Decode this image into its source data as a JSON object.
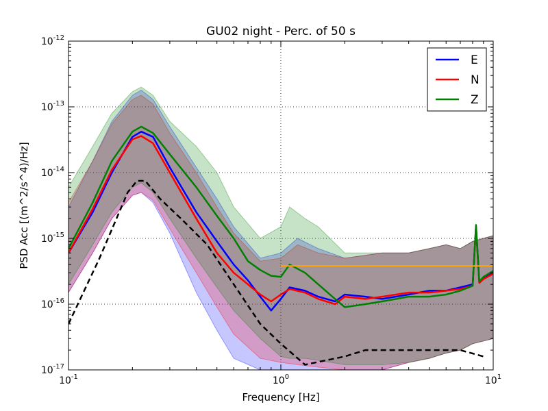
{
  "chart_data": {
    "type": "line",
    "title": "GU02 night - Perc. of 50 s",
    "xlabel": "Frequency [Hz]",
    "ylabel": "PSD Acc [(m^2/s^4)/Hz]",
    "x_scale": "log",
    "y_scale": "log",
    "xlim": [
      0.1,
      10
    ],
    "ylim": [
      1e-17,
      1e-12
    ],
    "x_ticks": [
      {
        "base": "10",
        "exp": "-1"
      },
      {
        "base": "10",
        "exp": "0"
      },
      {
        "base": "10",
        "exp": "1"
      }
    ],
    "y_ticks": [
      {
        "base": "10",
        "exp": "-17"
      },
      {
        "base": "10",
        "exp": "-16"
      },
      {
        "base": "10",
        "exp": "-15"
      },
      {
        "base": "10",
        "exp": "-14"
      },
      {
        "base": "10",
        "exp": "-13"
      },
      {
        "base": "10",
        "exp": "-12"
      }
    ],
    "grid": true,
    "legend_position": "top-right",
    "colors": {
      "E": "#0000ff",
      "N": "#ff0000",
      "Z": "#008000",
      "ref_low": "#000000",
      "ref_high": "#ffa500"
    },
    "series": [
      {
        "name": "E",
        "x": [
          0.1,
          0.13,
          0.16,
          0.2,
          0.22,
          0.25,
          0.3,
          0.4,
          0.5,
          0.6,
          0.7,
          0.8,
          0.9,
          1.0,
          1.1,
          1.3,
          1.5,
          1.8,
          2.0,
          2.5,
          3.0,
          4.0,
          5.0,
          6.0,
          7.0,
          8.0,
          8.3,
          8.6,
          9.0,
          10.0
        ],
        "y": [
          6e-16,
          2.5e-15,
          1e-14,
          3.5e-14,
          4.2e-14,
          3.5e-14,
          1.2e-14,
          2.5e-15,
          9e-16,
          4e-16,
          2.3e-16,
          1.3e-16,
          8e-17,
          1.2e-16,
          1.8e-16,
          1.6e-16,
          1.3e-16,
          1.1e-16,
          1.4e-16,
          1.3e-16,
          1.2e-16,
          1.4e-16,
          1.6e-16,
          1.6e-16,
          1.8e-16,
          2e-16,
          1.5e-15,
          2.2e-16,
          2.5e-16,
          3e-16
        ]
      },
      {
        "name": "N",
        "x": [
          0.1,
          0.13,
          0.16,
          0.2,
          0.22,
          0.25,
          0.3,
          0.4,
          0.5,
          0.6,
          0.7,
          0.8,
          0.9,
          1.0,
          1.1,
          1.3,
          1.5,
          1.8,
          2.0,
          2.5,
          3.0,
          4.0,
          5.0,
          6.0,
          7.0,
          8.0,
          8.3,
          8.6,
          9.0,
          10.0
        ],
        "y": [
          6e-16,
          2.8e-15,
          1.1e-14,
          3.2e-14,
          3.6e-14,
          2.8e-14,
          1e-14,
          2e-15,
          6e-16,
          3e-16,
          2e-16,
          1.4e-16,
          1.1e-16,
          1.4e-16,
          1.7e-16,
          1.5e-16,
          1.2e-16,
          1e-16,
          1.3e-16,
          1.2e-16,
          1.3e-16,
          1.5e-16,
          1.5e-16,
          1.6e-16,
          1.7e-16,
          1.9e-16,
          1.5e-15,
          2.1e-16,
          2.4e-16,
          2.9e-16
        ]
      },
      {
        "name": "Z",
        "x": [
          0.1,
          0.13,
          0.16,
          0.2,
          0.22,
          0.25,
          0.3,
          0.4,
          0.5,
          0.6,
          0.7,
          0.8,
          0.9,
          1.0,
          1.1,
          1.3,
          1.5,
          1.8,
          2.0,
          2.5,
          3.0,
          4.0,
          5.0,
          6.0,
          7.0,
          8.0,
          8.3,
          8.6,
          9.0,
          10.0
        ],
        "y": [
          7e-16,
          3.5e-15,
          1.5e-14,
          4.2e-14,
          5e-14,
          4e-14,
          1.9e-14,
          6e-15,
          2.2e-15,
          1e-15,
          4.5e-16,
          3.3e-16,
          2.7e-16,
          2.6e-16,
          4e-16,
          3e-16,
          2e-16,
          1.2e-16,
          9e-17,
          1e-16,
          1.1e-16,
          1.3e-16,
          1.3e-16,
          1.4e-16,
          1.6e-16,
          1.9e-16,
          1.6e-15,
          2.2e-16,
          2.6e-16,
          3.2e-16
        ]
      },
      {
        "x": [
          0.1,
          0.14,
          0.19,
          0.21,
          0.23,
          0.27,
          0.35,
          0.45,
          0.6,
          0.8,
          1.0,
          1.3,
          2.0,
          2.5,
          3.0,
          5.0,
          7.0,
          9.0
        ],
        "y": [
          5e-17,
          5e-16,
          5e-15,
          7.5e-15,
          7.5e-15,
          4e-15,
          1.8e-15,
          8e-16,
          2e-16,
          5e-17,
          2.5e-17,
          1.2e-17,
          1.6e-17,
          2e-17,
          2e-17,
          2e-17,
          2e-17,
          1.6e-17
        ]
      },
      {
        "x": [
          1.0,
          10.0
        ],
        "y": [
          3.8e-16,
          3.8e-16
        ]
      }
    ],
    "bands": [
      {
        "series": "E",
        "x": [
          0.1,
          0.13,
          0.16,
          0.2,
          0.22,
          0.25,
          0.3,
          0.4,
          0.5,
          0.6,
          0.8,
          1.0,
          1.2,
          1.5,
          2.0,
          3.0,
          4.0,
          5.0,
          6.0,
          7.0,
          8.0,
          10.0
        ],
        "upper": [
          3e-15,
          1.5e-14,
          6e-14,
          1.5e-13,
          1.8e-13,
          1.3e-13,
          5e-14,
          1.2e-14,
          4e-15,
          1.5e-15,
          5e-16,
          6e-16,
          1e-15,
          7e-16,
          5e-16,
          6e-16,
          6e-16,
          7e-16,
          8e-16,
          7e-16,
          9e-16,
          1.1e-15
        ],
        "lower": [
          1.5e-16,
          6e-16,
          2e-15,
          4.5e-15,
          5e-15,
          3.5e-15,
          1.2e-15,
          1.5e-16,
          4e-17,
          1.5e-17,
          1e-17,
          1e-17,
          1e-17,
          1e-17,
          1e-17,
          1e-17,
          1.3e-17,
          1.5e-17,
          1.8e-17,
          2e-17,
          2.5e-17,
          3e-17
        ]
      },
      {
        "series": "N",
        "x": [
          0.1,
          0.13,
          0.16,
          0.2,
          0.22,
          0.25,
          0.3,
          0.4,
          0.5,
          0.6,
          0.8,
          1.0,
          1.2,
          1.5,
          2.0,
          3.0,
          4.0,
          5.0,
          6.0,
          7.0,
          8.0,
          10.0
        ],
        "upper": [
          3.5e-15,
          1.5e-14,
          5.5e-14,
          1.3e-13,
          1.5e-13,
          1.1e-13,
          4e-14,
          1e-14,
          3e-15,
          1.2e-15,
          4.5e-16,
          5e-16,
          8e-16,
          6e-16,
          5e-16,
          6e-16,
          6e-16,
          7e-16,
          8e-16,
          7e-16,
          9e-16,
          1.1e-15
        ],
        "lower": [
          1.5e-16,
          6e-16,
          2e-15,
          4.5e-15,
          5e-15,
          3.8e-15,
          1.4e-15,
          3e-16,
          9e-17,
          3.5e-17,
          1.5e-17,
          1.3e-17,
          1.2e-17,
          1.1e-17,
          1e-17,
          1e-17,
          1.3e-17,
          1.5e-17,
          1.8e-17,
          2e-17,
          2.5e-17,
          3e-17
        ]
      },
      {
        "series": "Z",
        "x": [
          0.1,
          0.13,
          0.16,
          0.2,
          0.22,
          0.25,
          0.3,
          0.4,
          0.5,
          0.6,
          0.8,
          1.0,
          1.1,
          1.3,
          1.5,
          2.0,
          3.0,
          4.0,
          5.0,
          6.0,
          7.0,
          8.0,
          10.0
        ],
        "upper": [
          6e-15,
          2.5e-14,
          8e-14,
          1.7e-13,
          2e-13,
          1.5e-13,
          6e-14,
          2.5e-14,
          1e-14,
          3e-15,
          1e-15,
          1.5e-15,
          3e-15,
          2e-15,
          1.5e-15,
          6e-16,
          6e-16,
          6e-16,
          7e-16,
          8e-16,
          7e-16,
          9e-16,
          1.1e-15
        ],
        "lower": [
          2e-16,
          8e-16,
          2.5e-15,
          6e-15,
          7e-15,
          5e-15,
          2e-15,
          5e-16,
          1.8e-16,
          8e-17,
          3e-17,
          1.6e-17,
          1.5e-17,
          1.5e-17,
          1.4e-17,
          1.2e-17,
          1.2e-17,
          1.3e-17,
          1.5e-17,
          1.8e-17,
          2e-17,
          2.5e-17,
          3e-17
        ]
      }
    ]
  }
}
